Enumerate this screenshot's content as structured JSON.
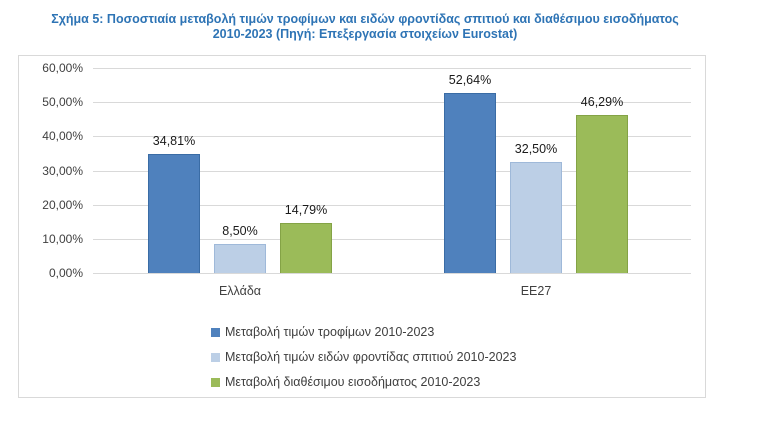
{
  "title": {
    "line1": "Σχήμα 5: Ποσοστιαία μεταβολή τιμών τροφίμων και ειδών φροντίδας σπιτιού και διαθέσιμου εισοδήματος",
    "line2": "2010-2023 (Πηγή: Επεξεργασία στοιχείων Eurostat)"
  },
  "chart_data": {
    "type": "bar",
    "categories": [
      "Ελλάδα",
      "ΕΕ27"
    ],
    "series": [
      {
        "name": "Μεταβολή τιμών τροφίμων 2010-2023",
        "values": [
          34.81,
          52.64
        ],
        "labels": [
          "34,81%",
          "52,64%"
        ],
        "color": "#4F81BD",
        "border_color": "#3A6CA5"
      },
      {
        "name": "Μεταβολή τιμών ειδών φροντίδας σπιτιού 2010-2023",
        "values": [
          8.5,
          32.5
        ],
        "labels": [
          "8,50%",
          "32,50%"
        ],
        "color": "#BCCFE6",
        "border_color": "#9FB9D9"
      },
      {
        "name": "Μεταβολή διαθέσιμου εισοδήματος 2010-2023",
        "values": [
          14.79,
          46.29
        ],
        "labels": [
          "14,79%",
          "46,29%"
        ],
        "color": "#9BBB59",
        "border_color": "#84A346"
      }
    ],
    "ylim": [
      0,
      60
    ],
    "yticks": [
      "0,00%",
      "10,00%",
      "20,00%",
      "30,00%",
      "40,00%",
      "50,00%",
      "60,00%"
    ],
    "grid": true,
    "legend_position": "bottom-left"
  },
  "colors": {
    "title": "#2E74B5",
    "grid": "#D9D9D9",
    "chart_border": "#D9D9D9",
    "axis_text": "#404040"
  }
}
